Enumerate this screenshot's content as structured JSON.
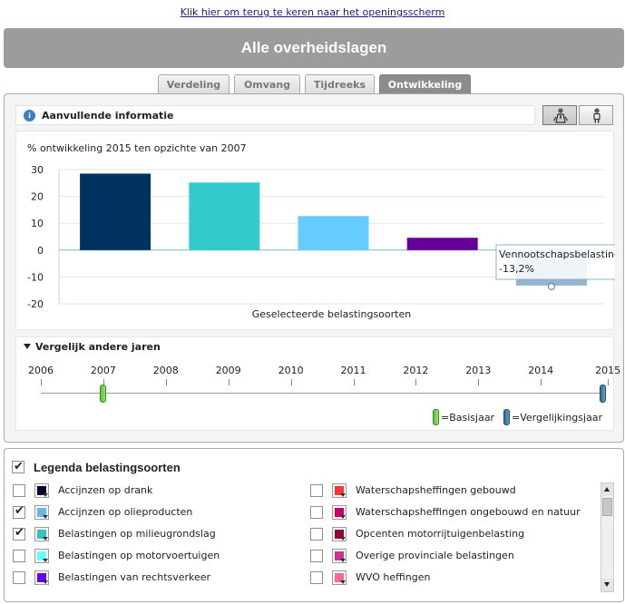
{
  "back_link": "Klik hier om terug te keren naar het openingsscherm",
  "title": "Alle overheidslagen",
  "tabs": [
    {
      "label": "Verdeling",
      "active": false
    },
    {
      "label": "Omvang",
      "active": false
    },
    {
      "label": "Tijdreeks",
      "active": false
    },
    {
      "label": "Ontwikkeling",
      "active": true
    }
  ],
  "info_bar": {
    "label": "Aanvullende informatie",
    "icon": "info-icon"
  },
  "view_buttons": [
    {
      "name": "businessman-view",
      "icon": "person-tie-icon",
      "pressed": true
    },
    {
      "name": "citizen-view",
      "icon": "person-icon",
      "pressed": false
    }
  ],
  "chart_data": {
    "type": "bar",
    "title": "% ontwikkeling 2015 ten opzichte van 2007",
    "xlabel": "Geselecteerde belastingsoorten",
    "ylabel": "",
    "ylim": [
      -20,
      30
    ],
    "yticks": [
      30,
      20,
      10,
      0,
      -10,
      -20
    ],
    "grid": true,
    "categories": [
      "Accijnzen op olieproducten",
      "Belastingen op milieugrondslag",
      "Belastingen op motorvoertuigen",
      "Belastingen van rechtsverkeer",
      "Vennootschapsbelasting"
    ],
    "values": [
      28.5,
      25.2,
      12.7,
      4.6,
      -13.2
    ],
    "colors": [
      "#00325f",
      "#33cccc",
      "#66ccff",
      "#660099",
      "#94b3cc"
    ],
    "tooltip": {
      "title": "Vennootschapsbelasting",
      "value": "-13,2%"
    }
  },
  "compare": {
    "title": "Vergelijk andere jaren",
    "years": [
      "2006",
      "2007",
      "2008",
      "2009",
      "2010",
      "2011",
      "2012",
      "2013",
      "2014",
      "2015"
    ],
    "base_year": "2007",
    "compare_year": "2015",
    "base_label": "=Basisjaar",
    "compare_label": "=Vergelijkingsjaar",
    "base_color": "#5cc034",
    "compare_color": "#2f6a8f"
  },
  "legend": {
    "title": "Legenda belastingsoorten",
    "checked": true,
    "left": [
      {
        "label": "Accijnzen op drank",
        "checked": false,
        "color": "#000033"
      },
      {
        "label": "Accijnzen op olieproducten",
        "checked": true,
        "color": "#66b8e6"
      },
      {
        "label": "Belastingen op milieugrondslag",
        "checked": true,
        "color": "#33c2c2"
      },
      {
        "label": "Belastingen op motorvoertuigen",
        "checked": false,
        "color": "#66ffff"
      },
      {
        "label": "Belastingen van rechtsverkeer",
        "checked": false,
        "color": "#6600ff"
      }
    ],
    "right": [
      {
        "label": "Waterschapsheffingen gebouwd",
        "checked": false,
        "color": "#ff3333"
      },
      {
        "label": "Waterschapsheffingen ongebouwd en natuur",
        "checked": false,
        "color": "#cc0066"
      },
      {
        "label": "Opcenten motorrijtuigenbelasting",
        "checked": false,
        "color": "#990033"
      },
      {
        "label": "Overige provinciale belastingen",
        "checked": false,
        "color": "#cc3399"
      },
      {
        "label": "WVO heffingen",
        "checked": false,
        "color": "#ff6699"
      }
    ]
  }
}
